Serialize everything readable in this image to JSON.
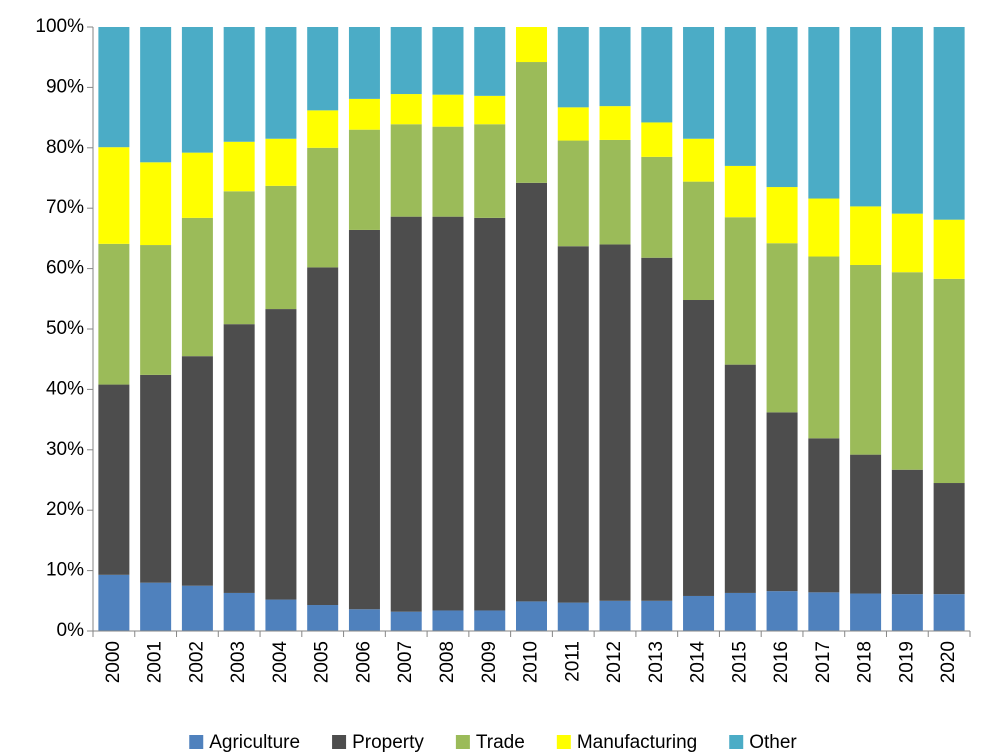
{
  "chart_data": {
    "type": "bar",
    "stacked": true,
    "categories": [
      "2000",
      "2001",
      "2002",
      "2003",
      "2004",
      "2005",
      "2006",
      "2007",
      "2008",
      "2009",
      "2010",
      "2011",
      "2012",
      "2013",
      "2014",
      "2015",
      "2016",
      "2017",
      "2018",
      "2019",
      "2020"
    ],
    "series": [
      {
        "name": "Agriculture",
        "color": "#4f81bd",
        "values": [
          9.3,
          8.0,
          7.5,
          6.3,
          5.2,
          4.3,
          3.6,
          3.2,
          3.4,
          3.4,
          4.9,
          4.7,
          5.0,
          5.0,
          5.8,
          6.3,
          6.6,
          6.4,
          6.2,
          6.1,
          6.1
        ]
      },
      {
        "name": "Property",
        "color": "#4d4d4d",
        "values": [
          31.5,
          34.4,
          38.0,
          44.5,
          48.1,
          55.9,
          62.8,
          65.4,
          65.2,
          65.0,
          69.3,
          59.0,
          59.0,
          56.8,
          49.0,
          37.8,
          29.6,
          25.5,
          23.0,
          20.6,
          18.4
        ]
      },
      {
        "name": "Trade",
        "color": "#9bbb59",
        "values": [
          23.3,
          21.5,
          22.9,
          22.0,
          20.4,
          19.8,
          16.6,
          15.3,
          14.9,
          15.5,
          20.0,
          17.5,
          17.3,
          16.7,
          19.6,
          24.4,
          28.0,
          30.1,
          31.4,
          32.7,
          33.8
        ]
      },
      {
        "name": "Manufacturing",
        "color": "#ffff00",
        "values": [
          16.0,
          13.7,
          10.8,
          8.2,
          7.8,
          6.2,
          5.1,
          5.0,
          5.3,
          4.7,
          5.8,
          5.5,
          5.6,
          5.7,
          7.1,
          8.5,
          9.3,
          9.6,
          9.7,
          9.7,
          9.8
        ]
      },
      {
        "name": "Other",
        "color": "#4bacc6",
        "values": [
          19.9,
          22.4,
          20.8,
          19.0,
          18.5,
          13.8,
          11.9,
          11.1,
          11.2,
          11.4,
          0,
          13.3,
          13.1,
          15.8,
          18.5,
          23.0,
          26.5,
          28.4,
          29.7,
          30.9,
          31.9
        ]
      }
    ],
    "ylim": [
      0,
      100
    ],
    "yticks": [
      {
        "value": 0,
        "label": "0%"
      },
      {
        "value": 10,
        "label": "10%"
      },
      {
        "value": 20,
        "label": "20%"
      },
      {
        "value": 30,
        "label": "30%"
      },
      {
        "value": 40,
        "label": "40%"
      },
      {
        "value": 50,
        "label": "50%"
      },
      {
        "value": 60,
        "label": "60%"
      },
      {
        "value": 70,
        "label": "70%"
      },
      {
        "value": 80,
        "label": "80%"
      },
      {
        "value": 90,
        "label": "90%"
      },
      {
        "value": 100,
        "label": "100%"
      }
    ],
    "legend": "bottom"
  }
}
